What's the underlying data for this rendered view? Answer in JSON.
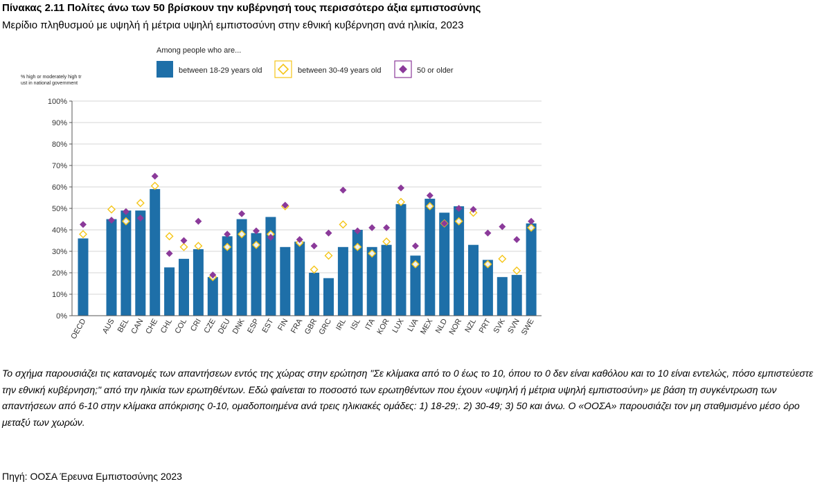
{
  "title": "Πίνακας 2.11 Πολίτες άνω των 50 βρίσκουν την κυβέρνησή τους περισσότερο άξια εμπιστοσύνης",
  "subtitle": "Μερίδιο πληθυσμού με υψηλή ή μέτρια υψηλή εμπιστοσύνη στην εθνική κυβέρνηση ανά ηλικία, 2023",
  "note": "Το σχήμα παρουσιάζει τις κατανομές των απαντήσεων εντός της χώρας στην ερώτηση \"Σε κλίμακα από το 0 έως το 10, όπου το 0 δεν είναι καθόλου και το 10 είναι εντελώς, πόσο εμπιστεύεστε την εθνική κυβέρνηση;\" από την ηλικία των ερωτηθέντων. Εδώ φαίνεται το ποσοστό των ερωτηθέντων που έχουν «υψηλή ή μέτρια υψηλή εμπιστοσύνη» με βάση τη συγκέντρωση των απαντήσεων από 6-10 στην κλίμακα απόκρισης 0-10, ομαδοποιημένα ανά τρεις ηλικιακές ομάδες: 1) 18-29;. 2) 30-49; 3) 50 και άνω. Ο «ΟΟΣΑ» παρουσιάζει τον μη σταθμισμένο μέσο όρο μεταξύ των χωρών.",
  "source": "Πηγή: ΟΟΣΑ Έρευνα Εμπιστοσύνης 2023",
  "colors": {
    "bar": "#1e6fa8",
    "diamond_30_49": "#f5c518",
    "diamond_50": "#8b3a9a",
    "grid": "#c8c8c8"
  },
  "chart_data": {
    "type": "bar",
    "ylabel": "% high or moderately high trust in national government",
    "legend_title": "Among people who are...",
    "legend_position": "top",
    "ylim": [
      0,
      100
    ],
    "yticks": [
      "0%",
      "10%",
      "20%",
      "30%",
      "40%",
      "50%",
      "60%",
      "70%",
      "80%",
      "90%",
      "100%"
    ],
    "categories": [
      "OECD",
      "AUS",
      "BEL",
      "CAN",
      "CHE",
      "CHL",
      "COL",
      "CRI",
      "CZE",
      "DEU",
      "DNK",
      "ESP",
      "EST",
      "FIN",
      "FRA",
      "GBR",
      "GRC",
      "IRL",
      "ISL",
      "ITA",
      "KOR",
      "LUX",
      "LVA",
      "MEX",
      "NLD",
      "NOR",
      "NZL",
      "PRT",
      "SVK",
      "SVN",
      "SWE"
    ],
    "gap_after_index": 0,
    "series": [
      {
        "name": "between 18-29 years old",
        "marker": "bar",
        "values": [
          36,
          45,
          49,
          49,
          59,
          22.5,
          26.5,
          31,
          18,
          37,
          45,
          38.5,
          46,
          32,
          34.5,
          20,
          17.5,
          32,
          40,
          32,
          33,
          52,
          28,
          54.5,
          48,
          51,
          33,
          26,
          18,
          19,
          43
        ]
      },
      {
        "name": "between 30-49 years old",
        "marker": "open-diamond",
        "values": [
          38,
          49.5,
          44,
          52.5,
          60.5,
          37,
          32,
          32.5,
          18,
          32,
          38,
          33,
          38,
          51,
          34,
          21.5,
          28,
          42.5,
          32,
          29,
          34.5,
          53,
          24,
          51,
          43,
          44,
          48,
          24,
          26.5,
          21,
          41
        ]
      },
      {
        "name": "50 or older",
        "marker": "filled-diamond",
        "values": [
          42.5,
          44.5,
          48.5,
          45.5,
          65,
          29,
          35,
          44,
          19,
          38,
          47.5,
          39.5,
          36.5,
          51.5,
          35.5,
          32.5,
          38.5,
          58.5,
          39.5,
          41,
          41,
          59.5,
          32.5,
          56,
          43,
          50,
          49.5,
          38.5,
          41.5,
          35.5,
          44
        ]
      }
    ]
  }
}
